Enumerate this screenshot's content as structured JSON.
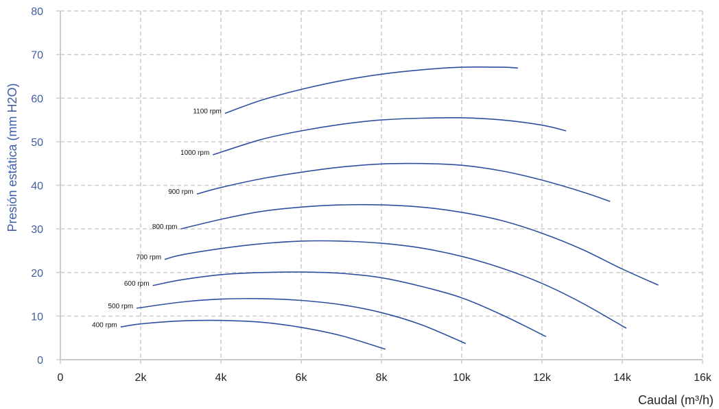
{
  "chart_data": {
    "type": "line",
    "title": "",
    "xlabel": "Caudal (m³/h)",
    "ylabel": "Presión estática (mm H2O)",
    "xlim": [
      0,
      16000
    ],
    "ylim": [
      0,
      80
    ],
    "x_ticks": [
      {
        "value": 0,
        "label": "0"
      },
      {
        "value": 2000,
        "label": "2k"
      },
      {
        "value": 4000,
        "label": "4k"
      },
      {
        "value": 6000,
        "label": "6k"
      },
      {
        "value": 8000,
        "label": "8k"
      },
      {
        "value": 10000,
        "label": "10k"
      },
      {
        "value": 12000,
        "label": "12k"
      },
      {
        "value": 14000,
        "label": "14k"
      },
      {
        "value": 16000,
        "label": "16k"
      }
    ],
    "y_ticks": [
      {
        "value": 0,
        "label": "0"
      },
      {
        "value": 10,
        "label": "10"
      },
      {
        "value": 20,
        "label": "20"
      },
      {
        "value": 30,
        "label": "30"
      },
      {
        "value": 40,
        "label": "40"
      },
      {
        "value": 50,
        "label": "50"
      },
      {
        "value": 60,
        "label": "60"
      },
      {
        "value": 70,
        "label": "70"
      },
      {
        "value": 80,
        "label": "80"
      }
    ],
    "grid": true,
    "legend": "none",
    "colors": {
      "series": "#2f4f9e",
      "y_axis_text": "#3d5ea6",
      "x_axis_text": "#222222",
      "grid": "#cccccc",
      "axis": "#cccccc"
    },
    "series": [
      {
        "name": "400 rpm",
        "label": "400 rpm",
        "x": [
          1500,
          2000,
          3000,
          4000,
          5000,
          6000,
          7000,
          8100
        ],
        "y": [
          7.5,
          8.2,
          8.9,
          9.0,
          8.6,
          7.4,
          5.5,
          2.4
        ]
      },
      {
        "name": "500 rpm",
        "label": "500 rpm",
        "x": [
          1900,
          3000,
          4000,
          5000,
          6000,
          7000,
          8000,
          9000,
          10100
        ],
        "y": [
          11.8,
          13.2,
          13.9,
          14.0,
          13.6,
          12.6,
          10.8,
          8.0,
          3.7
        ]
      },
      {
        "name": "600 rpm",
        "label": "600 rpm",
        "x": [
          2300,
          3000,
          4000,
          5000,
          6000,
          7000,
          8000,
          9000,
          10000,
          11000,
          12100
        ],
        "y": [
          17.0,
          18.3,
          19.5,
          20.0,
          20.1,
          19.8,
          18.8,
          16.8,
          14.2,
          10.3,
          5.3
        ]
      },
      {
        "name": "700 rpm",
        "label": "700 rpm",
        "x": [
          2600,
          3000,
          4000,
          5000,
          6000,
          7000,
          8000,
          9000,
          10000,
          11000,
          12000,
          13000,
          14100
        ],
        "y": [
          23.0,
          24.0,
          25.5,
          26.6,
          27.2,
          27.2,
          26.7,
          25.6,
          23.7,
          21.0,
          17.5,
          13.0,
          7.2
        ]
      },
      {
        "name": "800 rpm",
        "label": "800 rpm",
        "x": [
          3000,
          4000,
          5000,
          6000,
          7000,
          8000,
          9000,
          10000,
          11000,
          12000,
          13000,
          14000,
          14900
        ],
        "y": [
          30.0,
          32.2,
          34.0,
          35.0,
          35.5,
          35.5,
          35.0,
          33.8,
          31.9,
          29.0,
          25.3,
          20.8,
          17.1
        ]
      },
      {
        "name": "900 rpm",
        "label": "900 rpm",
        "x": [
          3400,
          4000,
          5000,
          6000,
          7000,
          8000,
          9000,
          10000,
          11000,
          12000,
          13000,
          13700
        ],
        "y": [
          38.0,
          39.5,
          41.5,
          43.0,
          44.2,
          44.9,
          45.0,
          44.6,
          43.3,
          41.2,
          38.5,
          36.3
        ]
      },
      {
        "name": "1000 rpm",
        "label": "1000 rpm",
        "x": [
          3800,
          5000,
          6000,
          7000,
          8000,
          9000,
          10000,
          11000,
          12000,
          12600
        ],
        "y": [
          47.0,
          50.5,
          52.5,
          54.0,
          55.0,
          55.4,
          55.5,
          55.0,
          53.8,
          52.5
        ]
      },
      {
        "name": "1100 rpm",
        "label": "1100 rpm",
        "x": [
          4100,
          5000,
          6000,
          7000,
          8000,
          9000,
          10000,
          11000,
          11400
        ],
        "y": [
          56.5,
          59.5,
          62.0,
          64.0,
          65.5,
          66.5,
          67.1,
          67.1,
          66.9
        ]
      }
    ]
  }
}
